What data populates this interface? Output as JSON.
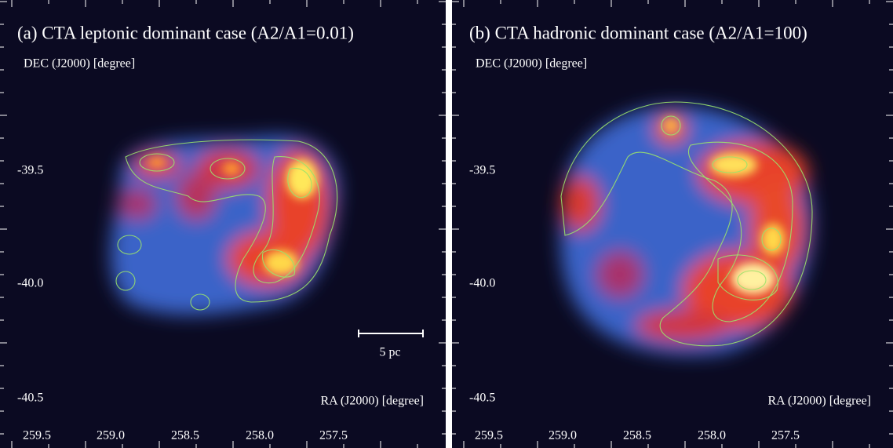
{
  "panels": [
    {
      "title": "(a) CTA leptonic dominant case (A2/A1=0.01)",
      "y_label": "DEC (J2000) [degree]",
      "x_label": "RA (J2000) [degree]",
      "y_tick_labels": [
        "-39.5",
        "-40.0",
        "-40.5"
      ],
      "x_tick_labels": [
        "259.5",
        "259.0",
        "258.5",
        "258.0",
        "257.5"
      ],
      "scale_bar": "5 pc"
    },
    {
      "title": "(b) CTA hadronic dominant case (A2/A1=100)",
      "y_label": "DEC (J2000) [degree]",
      "x_label": "RA (J2000) [degree]",
      "y_tick_labels": [
        "-39.5",
        "-40.0",
        "-40.5"
      ],
      "x_tick_labels": [
        "259.5",
        "259.0",
        "258.5",
        "258.0",
        "257.5"
      ]
    }
  ]
}
